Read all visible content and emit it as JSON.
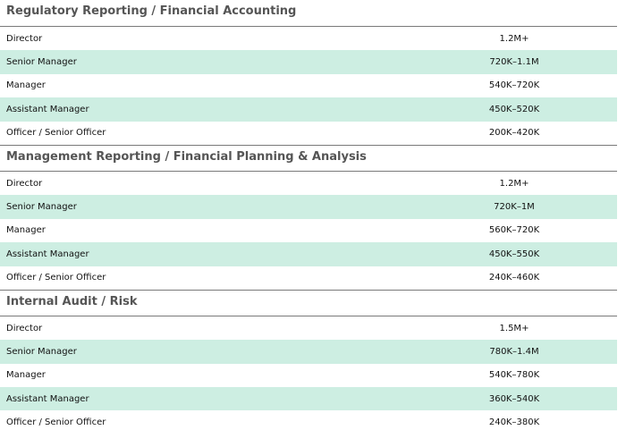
{
  "sections": [
    {
      "title": "Regulatory Reporting / Financial Accounting",
      "rows": [
        {
          "role": "Director",
          "salary": "1.2M+"
        },
        {
          "role": "Senior Manager",
          "salary": "720K–1.1M"
        },
        {
          "role": "Manager",
          "salary": "540K–720K"
        },
        {
          "role": "Assistant Manager",
          "salary": "450K–520K"
        },
        {
          "role": "Officer / Senior Officer",
          "salary": "200K–420K"
        }
      ]
    },
    {
      "title": "Management Reporting / Financial Planning & Analysis",
      "rows": [
        {
          "role": "Director",
          "salary": "1.2M+"
        },
        {
          "role": "Senior Manager",
          "salary": "720K–1M"
        },
        {
          "role": "Manager",
          "salary": "560K–720K"
        },
        {
          "role": "Assistant Manager",
          "salary": "450K–550K"
        },
        {
          "role": "Officer / Senior Officer",
          "salary": "240K–460K"
        }
      ]
    },
    {
      "title": "Internal Audit / Risk",
      "rows": [
        {
          "role": "Director",
          "salary": "1.5M+"
        },
        {
          "role": "Senior Manager",
          "salary": "780K–1.4M"
        },
        {
          "role": "Manager",
          "salary": "540K–780K"
        },
        {
          "role": "Assistant Manager",
          "salary": "360K–540K"
        },
        {
          "role": "Officer / Senior Officer",
          "salary": "240K–380K"
        }
      ]
    }
  ],
  "colors": {
    "shaded_row": "#cdeee2",
    "title_text": "#555555"
  }
}
